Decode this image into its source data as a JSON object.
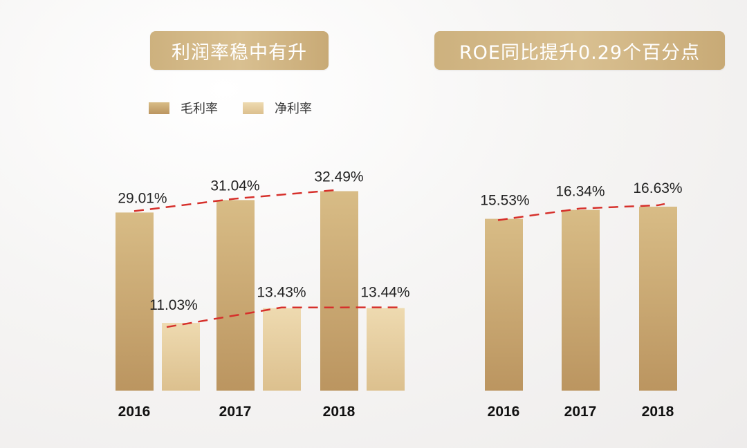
{
  "colors": {
    "gross_bar": "#c9a56e",
    "net_bar": "#e3cc9c",
    "trend_line": "#d6302b",
    "title_bg": "#d2b785"
  },
  "left_panel": {
    "title": "利润率稳中有升"
  },
  "right_panel": {
    "title": "ROE同比提升0.29个百分点"
  },
  "chart_data": [
    {
      "type": "bar",
      "title": "利润率稳中有升",
      "categories": [
        "2016",
        "2017",
        "2018"
      ],
      "series": [
        {
          "name": "毛利率",
          "values": [
            29.01,
            31.04,
            32.49
          ],
          "labels": [
            "29.01%",
            "31.04%",
            "32.49%"
          ]
        },
        {
          "name": "净利率",
          "values": [
            11.03,
            13.43,
            13.44
          ],
          "labels": [
            "11.03%",
            "13.43%",
            "13.44%"
          ]
        }
      ],
      "legend": "top-left",
      "grid": false,
      "trend_lines": "dashed red across each series"
    },
    {
      "type": "bar",
      "title": "ROE同比提升0.29个百分点",
      "categories": [
        "2016",
        "2017",
        "2018"
      ],
      "series": [
        {
          "values": [
            15.53,
            16.34,
            16.63
          ],
          "labels": [
            "15.53%",
            "16.34%",
            "16.63%"
          ]
        }
      ],
      "grid": false,
      "trend_lines": "dashed red"
    }
  ]
}
